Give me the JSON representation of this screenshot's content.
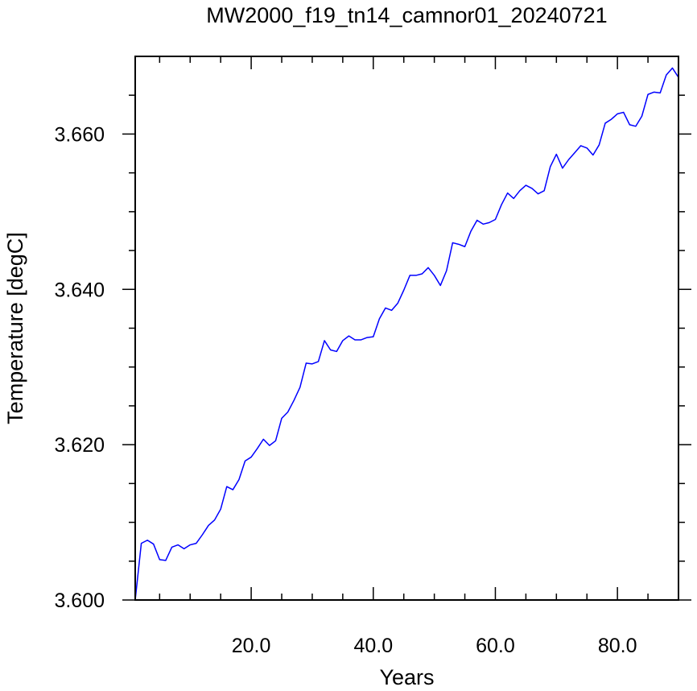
{
  "chart_data": {
    "type": "line",
    "title": "MW2000_f19_tn14_camnor01_20240721",
    "xlabel": "Years",
    "ylabel": "Temperature [degC]",
    "xlim": [
      1,
      90
    ],
    "ylim": [
      3.6,
      3.67
    ],
    "xticks": [
      20,
      40,
      60,
      80
    ],
    "xtick_labels": [
      "20.0",
      "40.0",
      "60.0",
      "80.0"
    ],
    "yticks": [
      3.6,
      3.62,
      3.64,
      3.66
    ],
    "ytick_labels": [
      "3.600",
      "3.620",
      "3.640",
      "3.660"
    ],
    "grid": false,
    "series": [
      {
        "color": "#0000ff",
        "x": [
          1,
          2,
          3,
          4,
          5,
          6,
          7,
          8,
          9,
          10,
          11,
          12,
          13,
          14,
          15,
          16,
          17,
          18,
          19,
          20,
          21,
          22,
          23,
          24,
          25,
          26,
          27,
          28,
          29,
          30,
          31,
          32,
          33,
          34,
          35,
          36,
          37,
          38,
          39,
          40,
          41,
          42,
          43,
          44,
          45,
          46,
          47,
          48,
          49,
          50,
          51,
          52,
          53,
          54,
          55,
          56,
          57,
          58,
          59,
          60,
          61,
          62,
          63,
          64,
          65,
          66,
          67,
          68,
          69,
          70,
          71,
          72,
          73,
          74,
          75,
          76,
          77,
          78,
          79,
          80,
          81,
          82,
          83,
          84,
          85,
          86,
          87,
          88,
          89,
          90
        ],
        "values": [
          3.6,
          3.6073,
          3.6077,
          3.6072,
          3.6052,
          3.6051,
          3.6068,
          3.6071,
          3.6066,
          3.6071,
          3.6073,
          3.6084,
          3.6096,
          3.6103,
          3.6117,
          3.6146,
          3.6142,
          3.6155,
          3.6179,
          3.6184,
          3.6195,
          3.6207,
          3.6199,
          3.6205,
          3.6234,
          3.6242,
          3.6257,
          3.6274,
          3.6305,
          3.6304,
          3.6307,
          3.6334,
          3.6322,
          3.632,
          3.6334,
          3.634,
          3.6335,
          3.6335,
          3.6338,
          3.6339,
          3.6362,
          3.6376,
          3.6373,
          3.6382,
          3.6399,
          3.6418,
          3.6418,
          3.642,
          3.6428,
          3.6418,
          3.6405,
          3.6424,
          3.646,
          3.6458,
          3.6455,
          3.6475,
          3.6489,
          3.6484,
          3.6486,
          3.649,
          3.6509,
          3.6524,
          3.6517,
          3.6527,
          3.6534,
          3.653,
          3.6523,
          3.6527,
          3.6558,
          3.6574,
          3.6556,
          3.6567,
          3.6576,
          3.6585,
          3.6582,
          3.6573,
          3.6586,
          3.6614,
          3.6619,
          3.6626,
          3.6628,
          3.6612,
          3.661,
          3.6623,
          3.6651,
          3.6654,
          3.6653,
          3.6676,
          3.6685,
          3.6673
        ]
      }
    ]
  }
}
